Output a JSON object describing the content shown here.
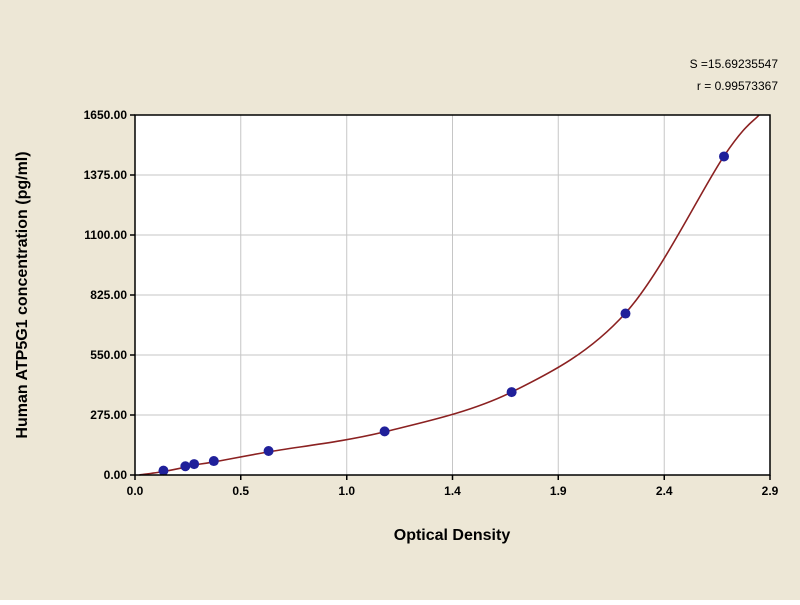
{
  "chart_data": {
    "type": "scatter",
    "title": "",
    "xlabel": "Optical Density",
    "ylabel": "Human ATP5G1 concentration (pg/ml)",
    "xlim": [
      0,
      2.9
    ],
    "ylim": [
      0,
      1650
    ],
    "grid": true,
    "legend": false,
    "x_ticks": [
      0,
      0.483,
      0.967,
      1.45,
      1.933,
      2.417,
      2.9
    ],
    "x_tick_labels": [
      "0.0",
      "0.5",
      "1.0",
      "1.4",
      "1.9",
      "2.4",
      "2.9"
    ],
    "y_ticks": [
      0,
      275,
      550,
      825,
      1100,
      1375,
      1650
    ],
    "y_tick_labels": [
      "0.00",
      "275.00",
      "550.00",
      "825.00",
      "1100.00",
      "1375.00",
      "1650.00"
    ],
    "annotations": [
      "S =15.69235547",
      "r = 0.99573367"
    ],
    "series": [
      {
        "name": "fitted curve",
        "type": "line",
        "color": "#8B2121",
        "points": [
          [
            0.02,
            0
          ],
          [
            0.13,
            16
          ],
          [
            0.23,
            36
          ],
          [
            0.27,
            46
          ],
          [
            0.36,
            60
          ],
          [
            0.61,
            106
          ],
          [
            1.14,
            198
          ],
          [
            1.72,
            380
          ],
          [
            2.24,
            742
          ],
          [
            2.69,
            1462
          ],
          [
            2.85,
            1650
          ]
        ]
      },
      {
        "name": "standard points",
        "type": "scatter",
        "color": "#20209A",
        "marker": "circle",
        "marker_radius": 5,
        "points": [
          [
            0.13,
            20
          ],
          [
            0.23,
            40
          ],
          [
            0.27,
            50
          ],
          [
            0.36,
            64
          ],
          [
            0.61,
            110
          ],
          [
            1.14,
            200
          ],
          [
            1.72,
            380
          ],
          [
            2.24,
            740
          ],
          [
            2.69,
            1460
          ]
        ]
      }
    ],
    "colors": {
      "figure_background": "#EDE7D6",
      "plot_background": "#FFFFFF",
      "grid": "#C6C6C6",
      "axis": "#000000",
      "text": "#000000"
    }
  }
}
